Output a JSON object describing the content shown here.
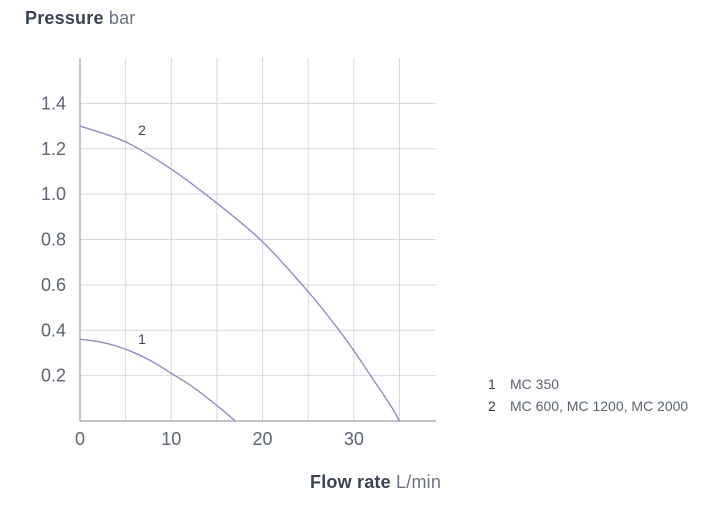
{
  "chart_data": {
    "type": "line",
    "title": "",
    "ylabel": "Pressure",
    "ylabel_unit": "bar",
    "xlabel": "Flow rate",
    "xlabel_unit": "L/min",
    "xlim": [
      0,
      39
    ],
    "ylim": [
      0,
      1.6
    ],
    "xticks": [
      0,
      10,
      20,
      30
    ],
    "xtick_labels": [
      "0",
      "10",
      "20",
      "30"
    ],
    "yticks": [
      0.2,
      0.4,
      0.6,
      0.8,
      1.0,
      1.2,
      1.4
    ],
    "ytick_labels": [
      "0.2",
      "0.4",
      "0.6",
      "0.8",
      "1.0",
      "1.2",
      "1.4"
    ],
    "x_gridlines": [
      0,
      5,
      10,
      15,
      20,
      25,
      30,
      35
    ],
    "y_gridlines": [
      0.2,
      0.4,
      0.6,
      0.8,
      1.0,
      1.2,
      1.4
    ],
    "grid": true,
    "line_color": "#8e8fbd",
    "grid_color": "#d5d8dd",
    "axis_color": "#9aa0a8",
    "series": [
      {
        "name": "1",
        "x": [
          0,
          2,
          4,
          6,
          8,
          10,
          12,
          14,
          16,
          17
        ],
        "y": [
          0.36,
          0.35,
          0.33,
          0.3,
          0.26,
          0.21,
          0.16,
          0.1,
          0.035,
          0.0
        ]
      },
      {
        "name": "2",
        "x": [
          0,
          5,
          10,
          15,
          20,
          25,
          28,
          30,
          32,
          34,
          35
        ],
        "y": [
          1.3,
          1.23,
          1.11,
          0.96,
          0.79,
          0.57,
          0.42,
          0.31,
          0.19,
          0.07,
          0.0
        ]
      }
    ],
    "curve_labels": [
      {
        "text": "1",
        "x": 6.8,
        "y": 0.34
      },
      {
        "text": "2",
        "x": 6.8,
        "y": 1.26
      }
    ],
    "legend": {
      "placement": "right",
      "items": [
        {
          "num": "1",
          "label": "MC 350"
        },
        {
          "num": "2",
          "label": "MC 600, MC 1200, MC 2000"
        }
      ]
    }
  }
}
